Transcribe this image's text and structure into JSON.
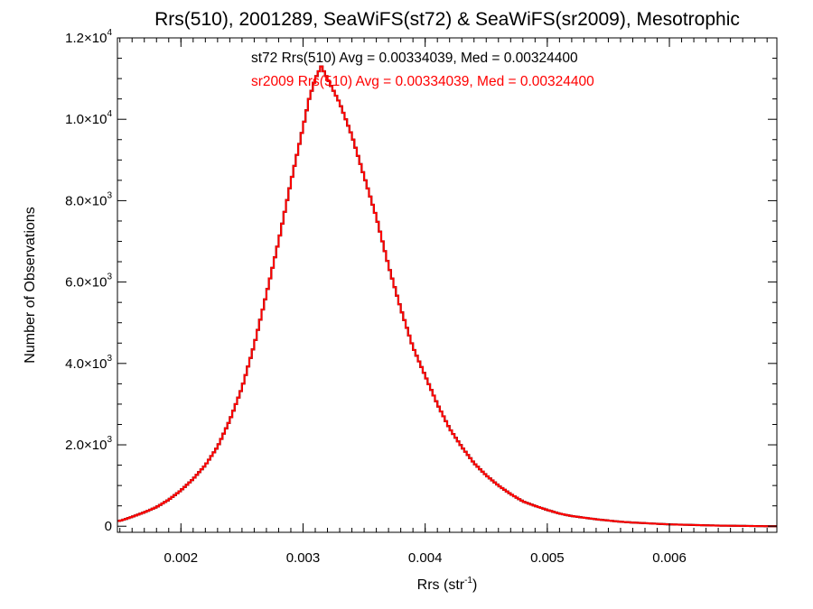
{
  "chart_data": {
    "type": "histogram",
    "title": "Rrs(510), 2001289, SeaWiFS(st72) & SeaWiFS(sr2009), Mesotrophic",
    "xlabel": {
      "base": "Rrs (str",
      "sup": "-1",
      "suffix": ")"
    },
    "ylabel": "Number of Observations",
    "xlim": [
      0.00148,
      0.00688
    ],
    "ylim": [
      -150,
      12000
    ],
    "x_ticks": [
      0.002,
      0.003,
      0.004,
      0.005,
      0.006
    ],
    "x_tick_labels": [
      "0.002",
      "0.003",
      "0.004",
      "0.005",
      "0.006"
    ],
    "y_ticks": [
      {
        "value": 0,
        "label": "0",
        "exp": ""
      },
      {
        "value": 2000,
        "label": "2.0×10",
        "exp": "3"
      },
      {
        "value": 4000,
        "label": "4.0×10",
        "exp": "3"
      },
      {
        "value": 6000,
        "label": "6.0×10",
        "exp": "3"
      },
      {
        "value": 8000,
        "label": "8.0×10",
        "exp": "3"
      },
      {
        "value": 10000,
        "label": "1.0×10",
        "exp": "4"
      },
      {
        "value": 12000,
        "label": "1.2×10",
        "exp": "4"
      }
    ],
    "grid": false,
    "annotations": [
      {
        "text": "st72 Rrs(510) Avg = 0.00334039, Med = 0.00324400",
        "color": "#000000"
      },
      {
        "text": "sr2009 Rrs(510) Avg = 0.00334039, Med = 0.00324400",
        "color": "#ff0000"
      }
    ],
    "series": [
      {
        "name": "st72",
        "color": "#000000",
        "points": [
          [
            0.0015,
            130
          ],
          [
            0.0016,
            230
          ],
          [
            0.0017,
            340
          ],
          [
            0.0018,
            470
          ],
          [
            0.0019,
            650
          ],
          [
            0.002,
            880
          ],
          [
            0.0021,
            1160
          ],
          [
            0.0022,
            1500
          ],
          [
            0.0023,
            1950
          ],
          [
            0.0024,
            2600
          ],
          [
            0.0025,
            3400
          ],
          [
            0.0026,
            4450
          ],
          [
            0.0027,
            5700
          ],
          [
            0.0028,
            7000
          ],
          [
            0.0029,
            8450
          ],
          [
            0.003,
            9800
          ],
          [
            0.00305,
            10500
          ],
          [
            0.0031,
            11000
          ],
          [
            0.00315,
            11300
          ],
          [
            0.0032,
            11000
          ],
          [
            0.00325,
            10700
          ],
          [
            0.0033,
            10400
          ],
          [
            0.0034,
            9600
          ],
          [
            0.0035,
            8600
          ],
          [
            0.0036,
            7600
          ],
          [
            0.0037,
            6400
          ],
          [
            0.0038,
            5350
          ],
          [
            0.0039,
            4400
          ],
          [
            0.004,
            3700
          ],
          [
            0.0041,
            3000
          ],
          [
            0.0042,
            2400
          ],
          [
            0.0043,
            1950
          ],
          [
            0.0044,
            1550
          ],
          [
            0.0045,
            1250
          ],
          [
            0.0046,
            1000
          ],
          [
            0.0047,
            790
          ],
          [
            0.0048,
            610
          ],
          [
            0.0049,
            500
          ],
          [
            0.005,
            400
          ],
          [
            0.0051,
            310
          ],
          [
            0.0052,
            250
          ],
          [
            0.0053,
            210
          ],
          [
            0.0054,
            170
          ],
          [
            0.0055,
            140
          ],
          [
            0.0056,
            110
          ],
          [
            0.0057,
            90
          ],
          [
            0.0058,
            75
          ],
          [
            0.0059,
            60
          ],
          [
            0.006,
            45
          ],
          [
            0.0062,
            30
          ],
          [
            0.0064,
            15
          ],
          [
            0.0066,
            8
          ],
          [
            0.0068,
            0
          ]
        ]
      },
      {
        "name": "sr2009",
        "color": "#ff0000",
        "points": [
          [
            0.0015,
            130
          ],
          [
            0.0016,
            230
          ],
          [
            0.0017,
            340
          ],
          [
            0.0018,
            470
          ],
          [
            0.0019,
            650
          ],
          [
            0.002,
            880
          ],
          [
            0.0021,
            1160
          ],
          [
            0.0022,
            1500
          ],
          [
            0.0023,
            1950
          ],
          [
            0.0024,
            2600
          ],
          [
            0.0025,
            3400
          ],
          [
            0.0026,
            4450
          ],
          [
            0.0027,
            5700
          ],
          [
            0.0028,
            7000
          ],
          [
            0.0029,
            8450
          ],
          [
            0.003,
            9800
          ],
          [
            0.00305,
            10500
          ],
          [
            0.0031,
            11000
          ],
          [
            0.00315,
            11300
          ],
          [
            0.0032,
            11000
          ],
          [
            0.00325,
            10700
          ],
          [
            0.0033,
            10400
          ],
          [
            0.0034,
            9600
          ],
          [
            0.0035,
            8600
          ],
          [
            0.0036,
            7600
          ],
          [
            0.0037,
            6400
          ],
          [
            0.0038,
            5350
          ],
          [
            0.0039,
            4400
          ],
          [
            0.004,
            3700
          ],
          [
            0.0041,
            3000
          ],
          [
            0.0042,
            2400
          ],
          [
            0.0043,
            1950
          ],
          [
            0.0044,
            1550
          ],
          [
            0.0045,
            1250
          ],
          [
            0.0046,
            1000
          ],
          [
            0.0047,
            790
          ],
          [
            0.0048,
            610
          ],
          [
            0.0049,
            500
          ],
          [
            0.005,
            400
          ],
          [
            0.0051,
            310
          ],
          [
            0.0052,
            250
          ],
          [
            0.0053,
            210
          ],
          [
            0.0054,
            170
          ],
          [
            0.0055,
            140
          ],
          [
            0.0056,
            110
          ],
          [
            0.0057,
            90
          ],
          [
            0.0058,
            75
          ],
          [
            0.0059,
            60
          ],
          [
            0.006,
            45
          ],
          [
            0.0062,
            30
          ],
          [
            0.0064,
            15
          ],
          [
            0.0066,
            8
          ],
          [
            0.0068,
            0
          ]
        ]
      }
    ]
  }
}
